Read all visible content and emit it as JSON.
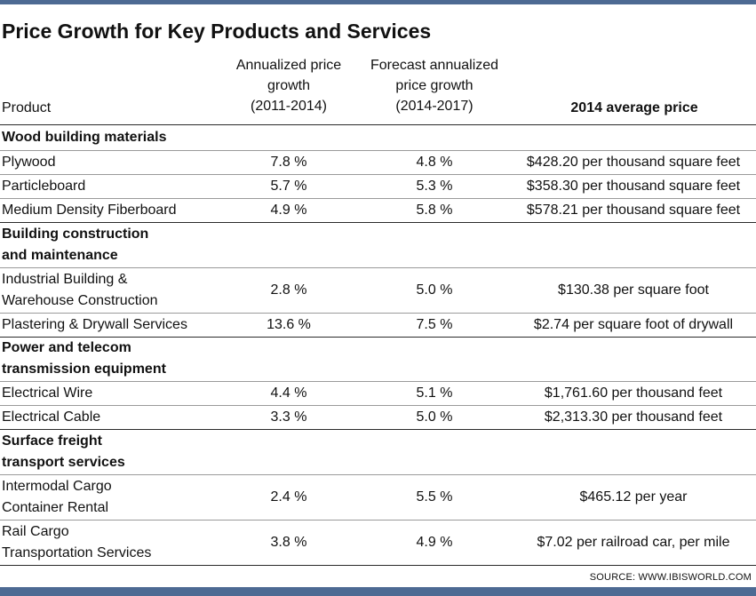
{
  "title": "Price Growth for Key Products and Services",
  "headers": {
    "product": "Product",
    "annualized_l1": "Annualized price",
    "annualized_l2": "growth",
    "annualized_l3": "(2011-2014)",
    "forecast_l1": "Forecast annualized",
    "forecast_l2": "price growth",
    "forecast_l3": "(2014-2017)",
    "avg_price": "2014 average price"
  },
  "categories": [
    {
      "name_l1": "Wood building materials",
      "name_l2": "",
      "rows": [
        {
          "product_l1": "Plywood",
          "product_l2": "",
          "annualized": "7.8 %",
          "forecast": "4.8 %",
          "price": "$428.20 per thousand square feet"
        },
        {
          "product_l1": "Particleboard",
          "product_l2": "",
          "annualized": "5.7 %",
          "forecast": "5.3 %",
          "price": "$358.30 per thousand square feet"
        },
        {
          "product_l1": "Medium Density Fiberboard",
          "product_l2": "",
          "annualized": "4.9 %",
          "forecast": "5.8 %",
          "price": "$578.21 per thousand square feet"
        }
      ]
    },
    {
      "name_l1": "Building construction",
      "name_l2": "and maintenance",
      "rows": [
        {
          "product_l1": "Industrial Building &",
          "product_l2": "Warehouse Construction",
          "annualized": "2.8 %",
          "forecast": "5.0 %",
          "price": "$130.38 per square foot"
        },
        {
          "product_l1": "Plastering & Drywall Services",
          "product_l2": "",
          "annualized": "13.6 %",
          "forecast": "7.5 %",
          "price": "$2.74 per square foot of drywall"
        }
      ]
    },
    {
      "name_l1": "Power and telecom",
      "name_l2": "transmission equipment",
      "rows": [
        {
          "product_l1": "Electrical Wire",
          "product_l2": "",
          "annualized": "4.4 %",
          "forecast": "5.1 %",
          "price": "$1,761.60 per thousand feet"
        },
        {
          "product_l1": "Electrical Cable",
          "product_l2": "",
          "annualized": "3.3 %",
          "forecast": "5.0 %",
          "price": "$2,313.30 per thousand feet"
        }
      ]
    },
    {
      "name_l1": "Surface freight",
      "name_l2": "transport services",
      "rows": [
        {
          "product_l1": "Intermodal Cargo",
          "product_l2": "Container Rental",
          "annualized": "2.4 %",
          "forecast": "5.5 %",
          "price": "$465.12 per year"
        },
        {
          "product_l1": "Rail Cargo",
          "product_l2": "Transportation Services",
          "annualized": "3.8 %",
          "forecast": "4.9 %",
          "price": "$7.02 per railroad car, per mile"
        }
      ]
    }
  ],
  "source": "SOURCE: WWW.IBISWORLD.COM"
}
